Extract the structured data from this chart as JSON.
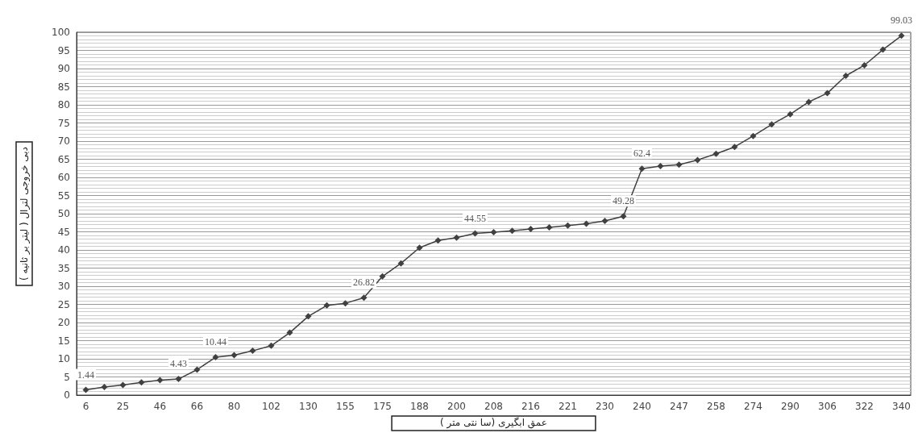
{
  "chart_data": {
    "type": "line",
    "xlabel": "عمق ابگیری (سا نتی متر )",
    "ylabel": "دبی خروجی لترال ( لیتر بر ثانیه )",
    "categories": [
      "6",
      null,
      "25",
      null,
      "46",
      null,
      "66",
      null,
      "80",
      null,
      "102",
      null,
      "130",
      null,
      "155",
      null,
      "175",
      null,
      "188",
      null,
      "200",
      null,
      "208",
      null,
      "216",
      null,
      "221",
      null,
      "230",
      null,
      "240",
      null,
      "247",
      null,
      "258",
      null,
      "274",
      null,
      "290",
      null,
      "306",
      null,
      "322",
      null,
      "340"
    ],
    "series": [
      {
        "color": "#404040",
        "values": [
          1.44,
          2.2,
          2.8,
          3.5,
          4.1,
          4.43,
          7.0,
          10.44,
          11.0,
          12.2,
          13.6,
          17.2,
          21.7,
          24.7,
          25.3,
          26.82,
          32.7,
          36.3,
          40.6,
          42.6,
          43.4,
          44.55,
          44.9,
          45.3,
          45.8,
          46.2,
          46.7,
          47.2,
          48.0,
          49.28,
          62.4,
          63.1,
          63.5,
          64.8,
          66.5,
          68.4,
          71.4,
          74.6,
          77.4,
          80.8,
          83.2,
          88.0,
          90.9,
          95.2,
          99.03
        ],
        "value_labels": [
          "1.44",
          null,
          null,
          null,
          null,
          "4.43",
          null,
          "10.44",
          null,
          null,
          null,
          null,
          null,
          null,
          null,
          "26.82",
          null,
          null,
          null,
          null,
          null,
          "44.55",
          null,
          null,
          null,
          null,
          null,
          null,
          null,
          "49.28",
          "62.4",
          null,
          null,
          null,
          null,
          null,
          null,
          null,
          null,
          null,
          null,
          null,
          null,
          null,
          "99.03"
        ]
      }
    ],
    "ylim": [
      0,
      100
    ],
    "yticks": [
      0,
      5,
      10,
      15,
      20,
      25,
      30,
      35,
      40,
      45,
      50,
      55,
      60,
      65,
      70,
      75,
      80,
      85,
      90,
      95,
      100
    ],
    "grid": "y",
    "marker": "diamond",
    "line_style": "solid"
  }
}
